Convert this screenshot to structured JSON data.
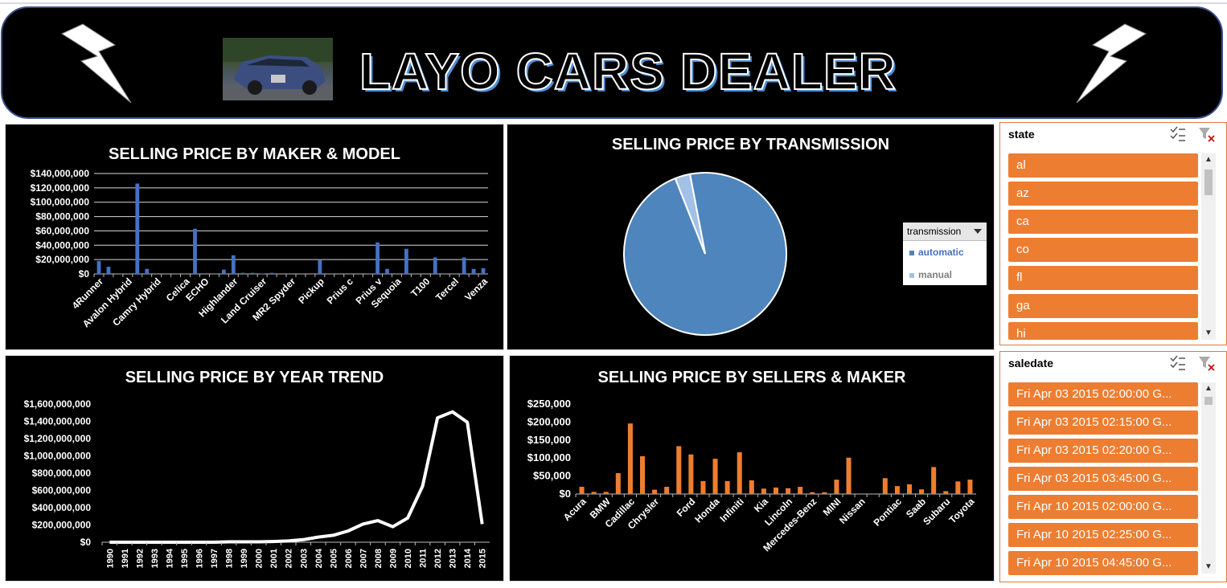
{
  "banner": {
    "title": "LAYO CARS DEALER",
    "bolt_left": "lightning-icon",
    "bolt_right": "lightning-icon",
    "car_image": "car-photo"
  },
  "colors": {
    "bar_blue": "#4472c4",
    "bar_orange": "#ed7d31",
    "pie_automatic": "#4e85bc",
    "pie_manual": "#a3c1e6",
    "slicer_item": "#ed7d31"
  },
  "charts": {
    "maker_model": {
      "title": "SELLING PRICE BY MAKER & MODEL"
    },
    "transmission": {
      "title": "SELLING PRICE BY TRANSMISSION",
      "legend_header": "transmission",
      "legend_items": [
        "automatic",
        "manual"
      ]
    },
    "year_trend": {
      "title": "SELLING PRICE BY YEAR TREND"
    },
    "sellers_maker": {
      "title": "SELLING PRICE BY SELLERS & MAKER"
    }
  },
  "chart_data": [
    {
      "type": "bar",
      "title": "SELLING PRICE BY MAKER & MODEL",
      "y_ticks": [
        "$0",
        "$20,000,000",
        "$40,000,000",
        "$60,000,000",
        "$80,000,000",
        "$100,000,000",
        "$120,000,000",
        "$140,000,000"
      ],
      "ylim": [
        0,
        140000000
      ],
      "x_labels": [
        "4Runner",
        "Avalon Hybrid",
        "Camry Hybrid",
        "Celica",
        "ECHO",
        "Highlander",
        "Land Cruiser",
        "MR2 Spyder",
        "Pickup",
        "Prius c",
        "Prius v",
        "Sequoia",
        "T100",
        "Tercel",
        "Venza"
      ],
      "values": [
        18000000,
        10000000,
        0,
        0,
        126000000,
        7000000,
        0,
        0,
        0,
        0,
        63000000,
        0,
        0,
        6000000,
        26000000,
        1500000,
        1500000,
        500000,
        1500000,
        0,
        0,
        0,
        0,
        19000000,
        0,
        0,
        0,
        1000000,
        0,
        44000000,
        7000000,
        0,
        35000000,
        0,
        0,
        23000000,
        0,
        0,
        23000000,
        7000000,
        8000000
      ],
      "grid": true
    },
    {
      "type": "pie",
      "title": "SELLING PRICE BY TRANSMISSION",
      "labels": [
        "automatic",
        "manual"
      ],
      "values": [
        97,
        3
      ],
      "legend": "right"
    },
    {
      "type": "line",
      "title": "SELLING PRICE BY YEAR TREND",
      "x": [
        "1990",
        "1991",
        "1992",
        "1993",
        "1994",
        "1995",
        "1996",
        "1997",
        "1998",
        "1999",
        "2000",
        "2001",
        "2002",
        "2003",
        "2004",
        "2005",
        "2006",
        "2007",
        "2008",
        "2009",
        "2010",
        "2011",
        "2012",
        "2013",
        "2014",
        "2015"
      ],
      "y": [
        0,
        0,
        0,
        0,
        0,
        0,
        0,
        0,
        5000000,
        5000000,
        5000000,
        8000000,
        15000000,
        30000000,
        60000000,
        80000000,
        130000000,
        210000000,
        250000000,
        180000000,
        280000000,
        650000000,
        1440000000,
        1510000000,
        1390000000,
        210000000
      ],
      "y_ticks": [
        "$0",
        "$200,000,000",
        "$400,000,000",
        "$600,000,000",
        "$800,000,000",
        "$1,000,000,000",
        "$1,200,000,000",
        "$1,400,000,000",
        "$1,600,000,000"
      ],
      "ylim": [
        0,
        1600000000
      ]
    },
    {
      "type": "bar",
      "title": "SELLING PRICE BY SELLERS & MAKER",
      "y_ticks": [
        "$0",
        "$50,000",
        "$100,000",
        "$150,000",
        "$200,000",
        "$250,000"
      ],
      "ylim": [
        0,
        250000
      ],
      "x_labels": [
        "Acura",
        "BMW",
        "Cadillac",
        "Chrysler",
        "Ford",
        "Honda",
        "Infiniti",
        "Kia",
        "Lincoln",
        "Mercedes-Benz",
        "MINI",
        "Nissan",
        "Pontiac",
        "Saab",
        "Subaru",
        "Toyota"
      ],
      "values": [
        20000,
        6000,
        6000,
        58000,
        196000,
        105000,
        12000,
        20000,
        133000,
        110000,
        36000,
        98000,
        36000,
        116000,
        38000,
        15000,
        18000,
        16000,
        20000,
        5000,
        5000,
        40000,
        101000,
        0,
        0,
        44000,
        22000,
        27000,
        13000,
        75000,
        8000,
        35000,
        40000
      ],
      "grid": false
    }
  ],
  "slicers": {
    "state": {
      "header": "state",
      "items": [
        "al",
        "az",
        "ca",
        "co",
        "fl",
        "ga",
        "hi"
      ],
      "multiselect_icon": "multi-select-icon",
      "clear_icon": "clear-filter-icon"
    },
    "saledate": {
      "header": "saledate",
      "items": [
        "Fri Apr 03 2015 02:00:00 G...",
        "Fri Apr 03 2015 02:15:00 G...",
        "Fri Apr 03 2015 02:20:00 G...",
        "Fri Apr 03 2015 03:45:00 G...",
        "Fri Apr 10 2015 02:00:00 G...",
        "Fri Apr 10 2015 02:25:00 G...",
        "Fri Apr 10 2015 04:45:00 G..."
      ],
      "multiselect_icon": "multi-select-icon",
      "clear_icon": "clear-filter-icon"
    }
  }
}
